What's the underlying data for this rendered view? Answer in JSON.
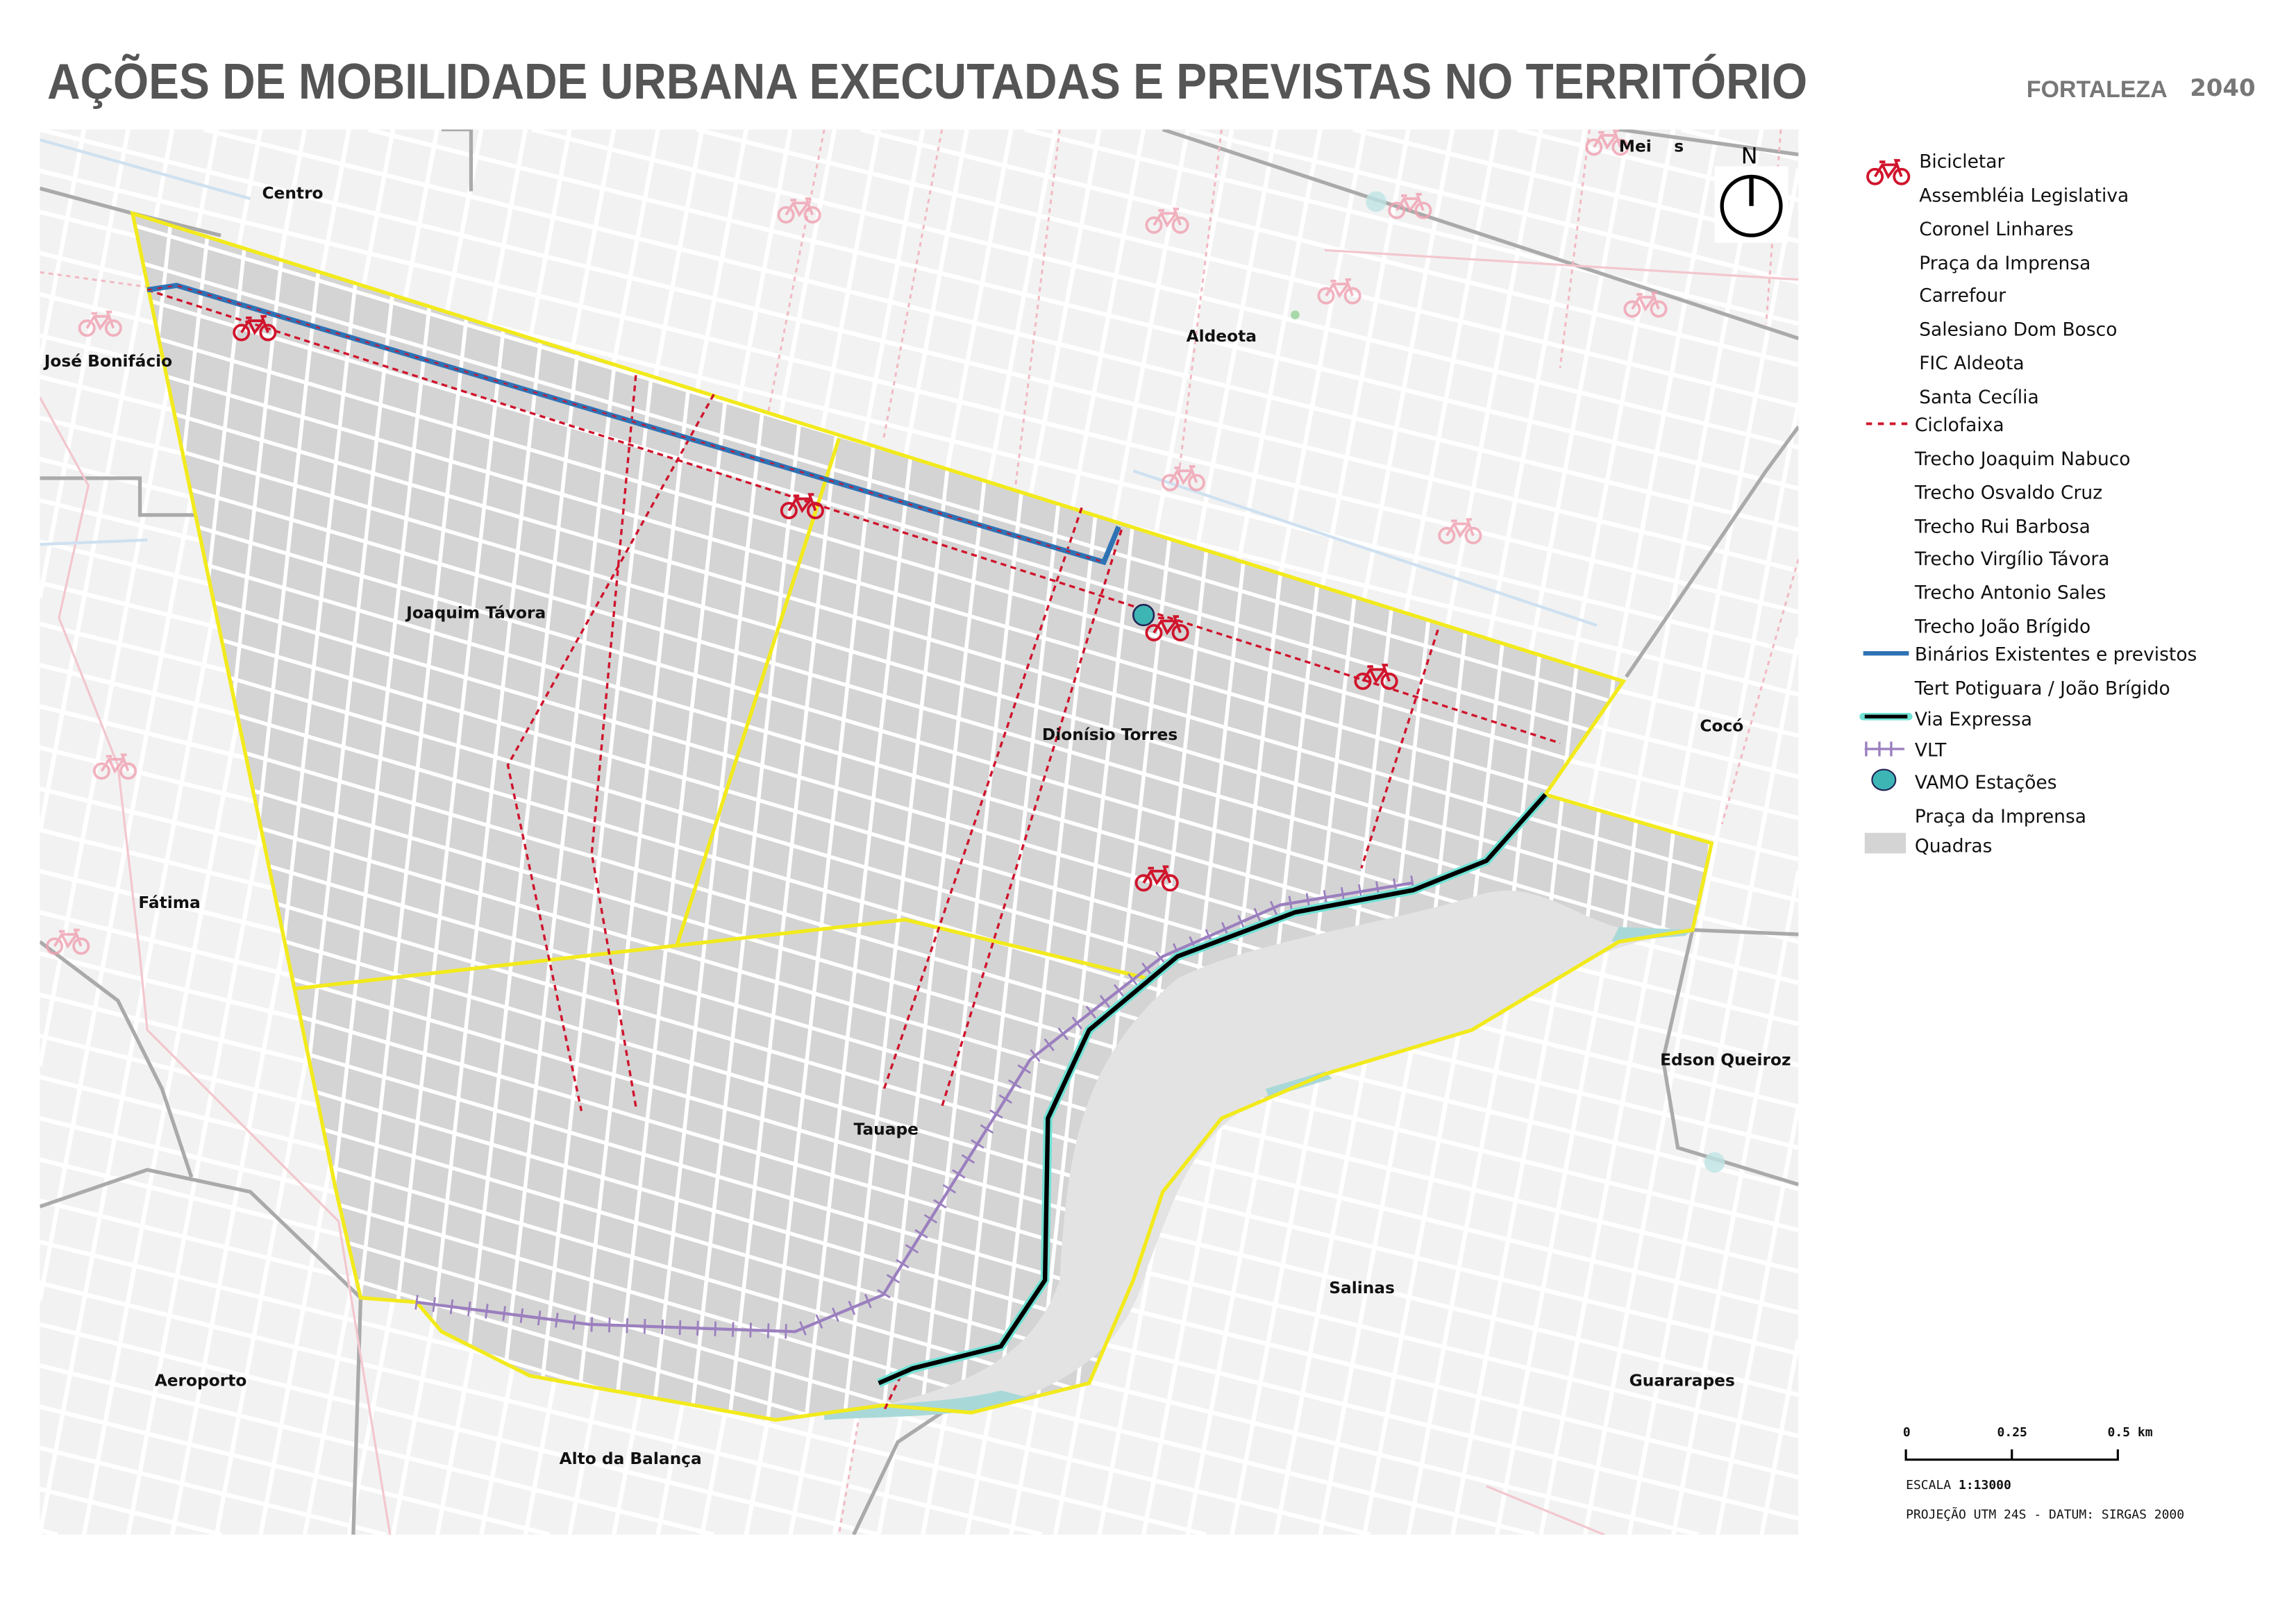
{
  "title": "AÇÕES DE MOBILIDADE URBANA EXECUTADAS E PREVISTAS NO TERRITÓRIO",
  "brand": {
    "name": "FORTALEZA",
    "year": "2040"
  },
  "colors": {
    "territory_outline": "#f2ea1c",
    "blocks": "#d4d4d4",
    "ciclofaixa": "#d0142c",
    "binarios": "#2f72b4",
    "via_expressa": "#000000",
    "via_expressa_glow": "#6fe3d6",
    "vlt": "#9b7fbf",
    "vamo": "#3eb5b5",
    "bike_icon": "#d0142c"
  },
  "north_arrow": {
    "label": "N",
    "icon": "north-arrow-icon"
  },
  "neighborhoods": [
    {
      "name": "Centro"
    },
    {
      "name": "José Bonifácio"
    },
    {
      "name": "Aldeota"
    },
    {
      "name": "Joaquim Távora"
    },
    {
      "name": "Dionísio Torres"
    },
    {
      "name": "Cocó"
    },
    {
      "name": "Fátima"
    },
    {
      "name": "Edson Queiroz"
    },
    {
      "name": "Tauape"
    },
    {
      "name": "Salinas"
    },
    {
      "name": "Aeroporto"
    },
    {
      "name": "Guararapes"
    },
    {
      "name": "Alto da Balança"
    },
    {
      "name": "Mei    s"
    }
  ],
  "legend": {
    "bicicletar": {
      "title": "Bicicletar",
      "icon": "bicycle-icon",
      "items": [
        "Assembléia Legislativa",
        "Coronel Linhares",
        "Praça da Imprensa",
        "Carrefour",
        "Salesiano Dom Bosco",
        "FIC Aldeota",
        "Santa Cecília"
      ]
    },
    "ciclofaixa": {
      "title": "Ciclofaixa",
      "items": [
        "Trecho Joaquim Nabuco",
        "Trecho Osvaldo Cruz",
        "Trecho Rui Barbosa",
        "Trecho Virgílio Távora",
        "Trecho Antonio Sales",
        "Trecho João Brígido"
      ]
    },
    "binarios": {
      "title": "Binários Existentes e previstos",
      "items": [
        "Tert Potiguara / João Brígido"
      ]
    },
    "via_expressa": {
      "title": "Via Expressa"
    },
    "vlt": {
      "title": "VLT"
    },
    "vamo": {
      "title": "VAMO Estações",
      "items": [
        "Praça da Imprensa"
      ]
    },
    "quadras": {
      "title": "Quadras"
    }
  },
  "scale_bar": {
    "ticks": [
      "0",
      "0.25",
      "0.5 km"
    ],
    "scale_label": "ESCALA",
    "scale_value": "1:13000",
    "projection": "PROJEÇÃO UTM 24S - DATUM: SIRGAS 2000"
  }
}
